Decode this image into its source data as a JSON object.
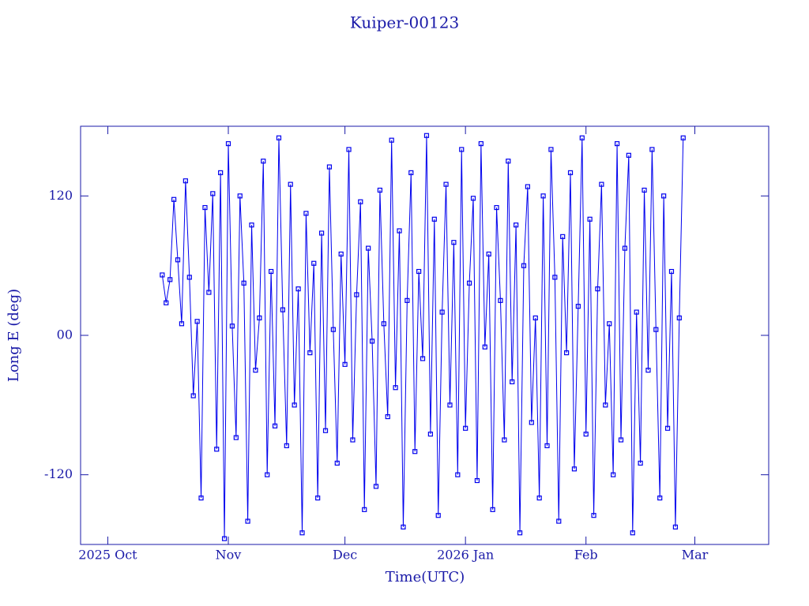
{
  "chart_data": {
    "type": "line",
    "title": "Kuiper-00123",
    "xlabel": "Time(UTC)",
    "ylabel": "Long E (deg)",
    "x": [
      "2025-10-15",
      "2025-10-16",
      "2025-10-17",
      "2025-10-18",
      "2025-10-19",
      "2025-10-20",
      "2025-10-21",
      "2025-10-22",
      "2025-10-23",
      "2025-10-24",
      "2025-10-25",
      "2025-10-26",
      "2025-10-27",
      "2025-10-28",
      "2025-10-29",
      "2025-10-30",
      "2025-10-31",
      "2025-11-01",
      "2025-11-02",
      "2025-11-03",
      "2025-11-04",
      "2025-11-05",
      "2025-11-06",
      "2025-11-07",
      "2025-11-08",
      "2025-11-09",
      "2025-11-10",
      "2025-11-11",
      "2025-11-12",
      "2025-11-13",
      "2025-11-14",
      "2025-11-15",
      "2025-11-16",
      "2025-11-17",
      "2025-11-18",
      "2025-11-19",
      "2025-11-20",
      "2025-11-21",
      "2025-11-22",
      "2025-11-23",
      "2025-11-24",
      "2025-11-25",
      "2025-11-26",
      "2025-11-27",
      "2025-11-28",
      "2025-11-29",
      "2025-11-30",
      "2025-12-01",
      "2025-12-02",
      "2025-12-03",
      "2025-12-04",
      "2025-12-05",
      "2025-12-06",
      "2025-12-07",
      "2025-12-08",
      "2025-12-09",
      "2025-12-10",
      "2025-12-11",
      "2025-12-12",
      "2025-12-13",
      "2025-12-14",
      "2025-12-15",
      "2025-12-16",
      "2025-12-17",
      "2025-12-18",
      "2025-12-19",
      "2025-12-20",
      "2025-12-21",
      "2025-12-22",
      "2025-12-23",
      "2025-12-24",
      "2025-12-25",
      "2025-12-26",
      "2025-12-27",
      "2025-12-28",
      "2025-12-29",
      "2025-12-30",
      "2025-12-31",
      "2026-01-01",
      "2026-01-02",
      "2026-01-03",
      "2026-01-04",
      "2026-01-05",
      "2026-01-06",
      "2026-01-07",
      "2026-01-08",
      "2026-01-09",
      "2026-01-10",
      "2026-01-11",
      "2026-01-12",
      "2026-01-13",
      "2026-01-14",
      "2026-01-15",
      "2026-01-16",
      "2026-01-17",
      "2026-01-18",
      "2026-01-19",
      "2026-01-20",
      "2026-01-21",
      "2026-01-22",
      "2026-01-23",
      "2026-01-24",
      "2026-01-25",
      "2026-01-26",
      "2026-01-27",
      "2026-01-28",
      "2026-01-29",
      "2026-01-30",
      "2026-01-31",
      "2026-02-01",
      "2026-02-02",
      "2026-02-03",
      "2026-02-04",
      "2026-02-05",
      "2026-02-06",
      "2026-02-07",
      "2026-02-08",
      "2026-02-09",
      "2026-02-10",
      "2026-02-11",
      "2026-02-12",
      "2026-02-13",
      "2026-02-14",
      "2026-02-15",
      "2026-02-16",
      "2026-02-17",
      "2026-02-18",
      "2026-02-19",
      "2026-02-20",
      "2026-02-21",
      "2026-02-22",
      "2026-02-23",
      "2026-02-24",
      "2026-02-25",
      "2026-02-26"
    ],
    "series": [
      {
        "color": "#0000ee",
        "values": [
          52,
          28,
          48,
          117,
          65,
          10,
          133,
          50,
          -52,
          12,
          -140,
          110,
          37,
          122,
          -98,
          140,
          -175,
          165,
          8,
          -88,
          120,
          45,
          -160,
          95,
          -30,
          15,
          150,
          -120,
          55,
          -78,
          170,
          22,
          -95,
          130,
          -60,
          40,
          -170,
          105,
          -15,
          62,
          -140,
          88,
          -82,
          145,
          5,
          -110,
          70,
          -25,
          160,
          -90,
          35,
          115,
          -150,
          75,
          -5,
          -130,
          125,
          10,
          -70,
          168,
          -45,
          90,
          -165,
          30,
          140,
          -100,
          55,
          -20,
          172,
          -85,
          100,
          -155,
          20,
          130,
          -60,
          80,
          -120,
          160,
          -80,
          45,
          118,
          -125,
          165,
          -10,
          70,
          -150,
          110,
          30,
          -90,
          150,
          -40,
          95,
          -170,
          60,
          128,
          -75,
          15,
          -140,
          120,
          -95,
          160,
          50,
          -160,
          85,
          -15,
          140,
          -115,
          25,
          170,
          -85,
          100,
          -155,
          40,
          130,
          -60,
          10,
          -120,
          165,
          -90,
          75,
          155,
          -170,
          20,
          -110,
          125,
          -30,
          160,
          5,
          -140,
          120,
          -80,
          55,
          -165,
          15,
          170
        ]
      }
    ],
    "xlim": [
      "2025-09-24",
      "2026-03-20"
    ],
    "xticks": [
      {
        "value": "2025-10-01",
        "label": "2025 Oct"
      },
      {
        "value": "2025-11-01",
        "label": "Nov"
      },
      {
        "value": "2025-12-01",
        "label": "Dec"
      },
      {
        "value": "2026-01-01",
        "label": "2026 Jan"
      },
      {
        "value": "2026-02-01",
        "label": "Feb"
      },
      {
        "value": "2026-03-01",
        "label": "Mar"
      }
    ],
    "ylim": [
      -180,
      180
    ],
    "yticks": [
      -120,
      {
        "value": 0,
        "label": "00"
      },
      120
    ],
    "frame_color": "#1a1aa8"
  }
}
